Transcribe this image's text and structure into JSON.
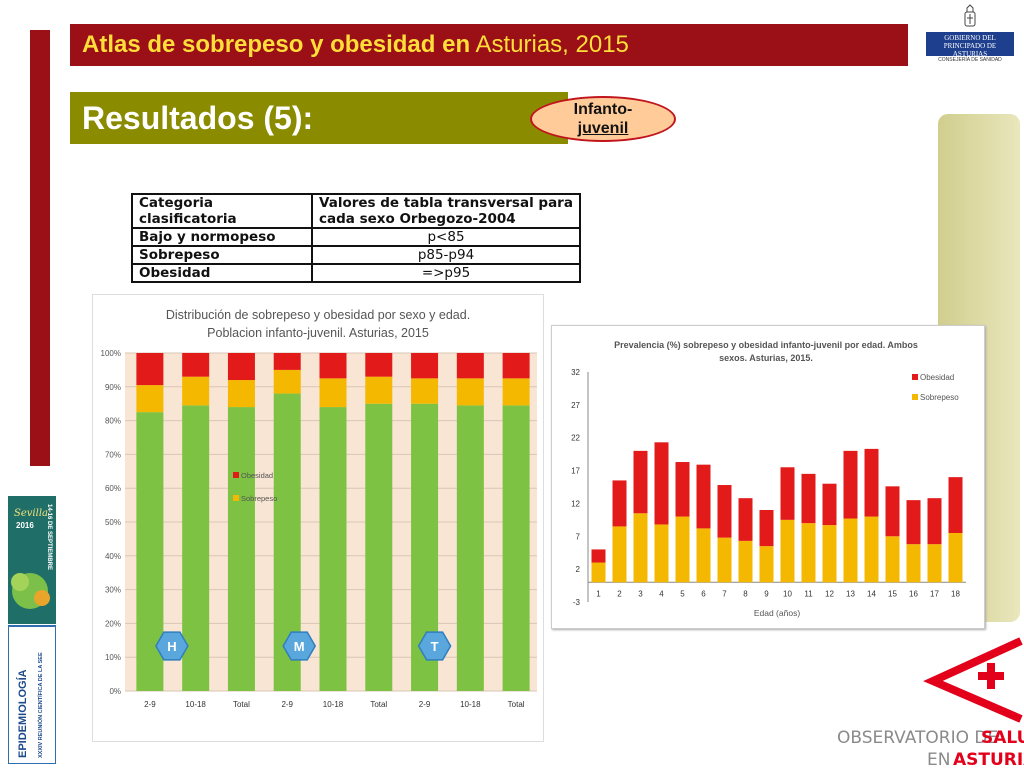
{
  "header": {
    "title_bold": "Atlas de sobrepeso y obesidad en",
    "title_light": "Asturias, 2015",
    "section_title": "Resultados (5):",
    "badge_line1": "Infanto-",
    "badge_line2": "juvenil"
  },
  "gov_logo": {
    "line1": "GOBIERNO DEL",
    "line2": "PRINCIPADO DE ASTURIAS",
    "line3": "CONSEJERÍA DE SANIDAD"
  },
  "criteria_table": {
    "headers": [
      "Categoria clasificatoria",
      "Valores de tabla transversal para cada sexo Orbegozo-2004"
    ],
    "rows": [
      [
        "Bajo y normopeso",
        "p<85"
      ],
      [
        "Sobrepeso",
        "p85-p94"
      ],
      [
        "Obesidad",
        "=>p95"
      ]
    ]
  },
  "colors": {
    "dark_red": "#9b0f16",
    "yellow_text": "#ffde3a",
    "olive": "#8b8b00",
    "green": "#7dc242",
    "orange": "#f5b800",
    "red": "#e31a1a",
    "hex_blue": "#5aa7dd"
  },
  "chart_data": [
    {
      "type": "bar",
      "stacked": true,
      "title": "Distribución de sobrepeso y obesidad por sexo y edad. Poblacion infanto-juvenil. Asturias, 2015",
      "categories": [
        "2-9",
        "10-18",
        "Total",
        "2-9",
        "10-18",
        "Total",
        "2-9",
        "10-18",
        "Total"
      ],
      "groups": [
        {
          "label": "H",
          "categories": [
            "2-9",
            "10-18",
            "Total"
          ]
        },
        {
          "label": "M",
          "categories": [
            "2-9",
            "10-18",
            "Total"
          ]
        },
        {
          "label": "T",
          "categories": [
            "2-9",
            "10-18",
            "Total"
          ]
        }
      ],
      "series": [
        {
          "name": "",
          "color": "#7dc242",
          "values": [
            82.5,
            84.5,
            84,
            88,
            84,
            85,
            85,
            84.5,
            84.5
          ]
        },
        {
          "name": "Sobrepeso",
          "color": "#f5b800",
          "values": [
            8,
            8.5,
            8,
            7,
            8.5,
            8,
            7.5,
            8,
            8
          ]
        },
        {
          "name": "Obesidad",
          "color": "#e31a1a",
          "values": [
            9.5,
            7,
            8,
            5,
            7.5,
            7,
            7.5,
            7.5,
            7.5
          ]
        }
      ],
      "y_ticks": [
        "0%",
        "10%",
        "20%",
        "30%",
        "40%",
        "50%",
        "60%",
        "70%",
        "80%",
        "90%",
        "100%"
      ],
      "ylim": [
        0,
        100
      ],
      "legend": [
        "Obesidad",
        "Sobrepeso"
      ],
      "legend_position": "middle-left",
      "grid": true
    },
    {
      "type": "bar",
      "stacked": true,
      "title_line1": "Prevalencia (%) sobrepeso y obesidad  infanto-juvenil  por edad. Ambos",
      "title_line2": "sexos. Asturias, 2015.",
      "xlabel": "Edad (años)",
      "categories": [
        "1",
        "2",
        "3",
        "4",
        "5",
        "6",
        "7",
        "8",
        "9",
        "10",
        "11",
        "12",
        "13",
        "14",
        "15",
        "16",
        "17",
        "18"
      ],
      "series": [
        {
          "name": "Sobrepeso",
          "color": "#f5b800",
          "values": [
            3,
            8.5,
            10.5,
            8.8,
            10,
            8.2,
            6.8,
            6.3,
            5.5,
            9.5,
            9,
            8.7,
            9.7,
            10,
            7,
            5.8,
            5.8,
            7.5
          ]
        },
        {
          "name": "Obesidad",
          "color": "#e31a1a",
          "values": [
            2,
            7,
            9.5,
            12.5,
            8.3,
            9.7,
            8,
            6.5,
            5.5,
            8,
            7.5,
            6.3,
            10.3,
            10.3,
            7.6,
            6.7,
            7,
            8.5
          ]
        }
      ],
      "y_ticks": [
        "-3",
        "2",
        "7",
        "12",
        "17",
        "22",
        "27",
        "32"
      ],
      "ylim": [
        -3,
        32
      ],
      "legend": [
        "Obesidad",
        "Sobrepeso"
      ],
      "legend_position": "top-right",
      "grid": false
    }
  ],
  "side_banner": {
    "city": "Sevilla",
    "year": "2016",
    "dates": "14-16 DE SEPTIEMBRE",
    "line1": "EPIDEMIOLOGÍA",
    "line2": "XXXIV REUNIÓN CIENTÍFICA DE LA SEE"
  },
  "observatorio": {
    "line1_a": "OBSERVATORIO DE",
    "line1_b": "SALUD",
    "line2_a": "EN",
    "line2_b": "ASTURIAS"
  }
}
